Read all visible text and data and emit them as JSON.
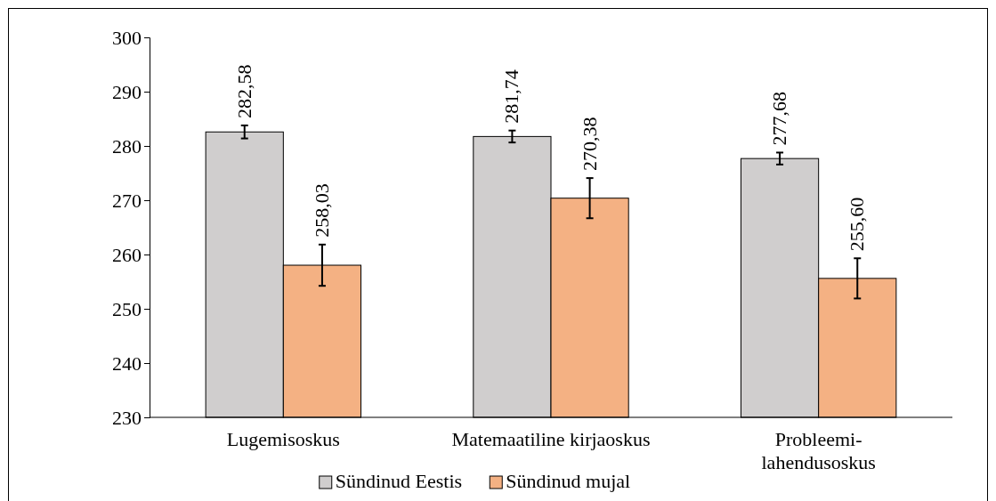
{
  "chart_data": {
    "type": "bar",
    "categories": [
      "Lugemisoskus",
      "Matemaatiline kirjaoskus",
      "Probleemi-lahendusoskus"
    ],
    "series": [
      {
        "name": "Sündinud Eestis",
        "color": "#d0cece",
        "values": [
          282.58,
          281.74,
          277.68
        ],
        "errors": [
          1.2,
          1.1,
          1.1
        ],
        "value_labels": [
          "282,58",
          "281,74",
          "277,68"
        ]
      },
      {
        "name": "Sündinud mujal",
        "color": "#f4b183",
        "values": [
          258.03,
          270.38,
          255.6
        ],
        "errors": [
          3.8,
          3.7,
          3.7
        ],
        "value_labels": [
          "258,03",
          "270,38",
          "255,60"
        ]
      }
    ],
    "ylim": [
      230,
      300
    ],
    "yticks": [
      230,
      240,
      250,
      260,
      270,
      280,
      290,
      300
    ],
    "grid": false,
    "legend": "bottom"
  }
}
